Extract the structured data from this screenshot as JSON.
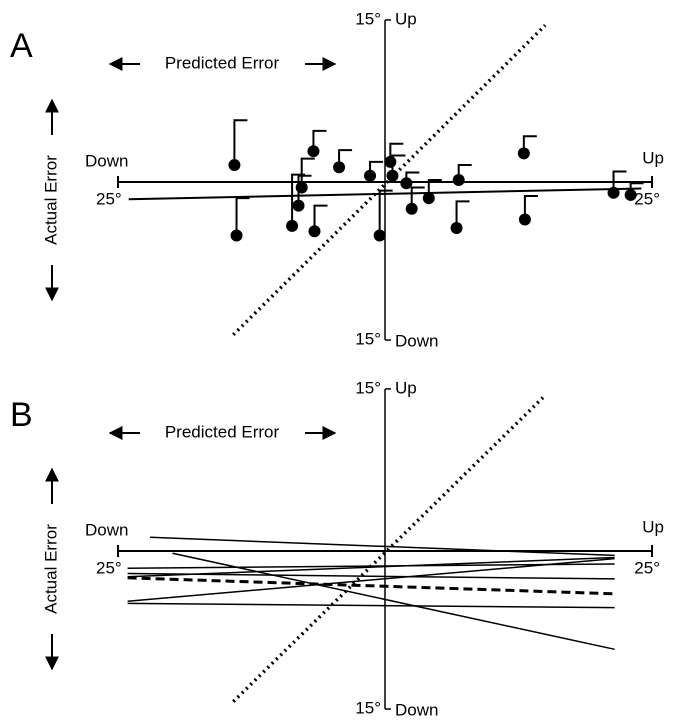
{
  "chart_data": [
    {
      "type": "scatter",
      "panel_label": "A",
      "xlabel": "Predicted Error",
      "ylabel": "Actual Error",
      "x_min_label": "Down",
      "x_max_label": "Up",
      "y_max_label": "Up",
      "y_min_label": "Down",
      "xlim": [
        -25,
        25
      ],
      "ylim": [
        -15,
        15
      ],
      "xticks": [
        {
          "value": -25,
          "label": "25°"
        },
        {
          "value": 25,
          "label": "25°"
        }
      ],
      "yticks": [
        {
          "value": -15,
          "label": "15°"
        },
        {
          "value": 15,
          "label": "15°"
        }
      ],
      "color": "#000000",
      "x": [
        -14.1,
        -13.9,
        -8.7,
        -8.1,
        -7.8,
        -6.7,
        -6.6,
        -4.3,
        -1.4,
        -0.5,
        0.5,
        0.7,
        2.0,
        2.5,
        4.1,
        6.7,
        6.9,
        13.0,
        13.1,
        21.4,
        23.0
      ],
      "values": [
        1.4,
        -5.2,
        -4.3,
        -2.4,
        -0.7,
        2.7,
        -4.8,
        1.2,
        0.4,
        -5.2,
        1.7,
        0.4,
        -0.3,
        -2.7,
        -1.7,
        -4.5,
        0.0,
        2.5,
        -3.7,
        -1.2,
        -1.4
      ],
      "errors": [
        4.2,
        3.5,
        4.8,
        2.8,
        2.7,
        1.9,
        2.4,
        1.6,
        1.3,
        4.2,
        1.7,
        1.9,
        1.0,
        2.0,
        1.7,
        2.5,
        1.4,
        1.6,
        2.2,
        2.0,
        1.1
      ],
      "fit": {
        "x": [
          -24,
          24
        ],
        "values": [
          -1.8,
          -0.8
        ]
      },
      "reference": {
        "x": [
          -14.2,
          15
        ],
        "values": [
          -14.5,
          14.5
        ]
      }
    },
    {
      "type": "line",
      "panel_label": "B",
      "xlabel": "Predicted Error",
      "ylabel": "Actual Error",
      "x_min_label": "Down",
      "x_max_label": "Up",
      "y_max_label": "Up",
      "y_min_label": "Down",
      "xlim": [
        -25,
        25
      ],
      "ylim": [
        -15,
        15
      ],
      "xticks": [
        {
          "value": -25,
          "label": "25°"
        },
        {
          "value": 25,
          "label": "25°"
        }
      ],
      "yticks": [
        {
          "value": -15,
          "label": "15°"
        },
        {
          "value": 15,
          "label": "15°"
        }
      ],
      "series": [
        {
          "color": "#000000",
          "style": "solid",
          "x": [
            -22.0,
            21.5
          ],
          "values": [
            1.1,
            -0.6
          ]
        },
        {
          "color": "#000000",
          "style": "solid",
          "x": [
            -19.9,
            21.5
          ],
          "values": [
            -0.4,
            -9.4
          ]
        },
        {
          "color": "#000000",
          "style": "solid",
          "x": [
            -24.1,
            21.5
          ],
          "values": [
            -1.8,
            -1.4
          ]
        },
        {
          "color": "#000000",
          "style": "solid",
          "x": [
            -24.1,
            21.5
          ],
          "values": [
            -2.3,
            -2.8
          ]
        },
        {
          "color": "#000000",
          "style": "solid",
          "x": [
            -24.1,
            21.5
          ],
          "values": [
            -2.6,
            -0.8
          ]
        },
        {
          "color": "#000000",
          "style": "solid",
          "x": [
            -24.1,
            21.5
          ],
          "values": [
            -4.9,
            -0.9
          ]
        },
        {
          "color": "#000000",
          "style": "solid",
          "x": [
            -24.1,
            21.5
          ],
          "values": [
            -5.1,
            -5.5
          ]
        },
        {
          "color": "#000000",
          "style": "dashed",
          "x": [
            -24.1,
            21.5
          ],
          "values": [
            -2.7,
            -4.2
          ]
        }
      ],
      "reference": {
        "x": [
          -14.2,
          15
        ],
        "values": [
          -14.3,
          14.4
        ]
      }
    }
  ]
}
